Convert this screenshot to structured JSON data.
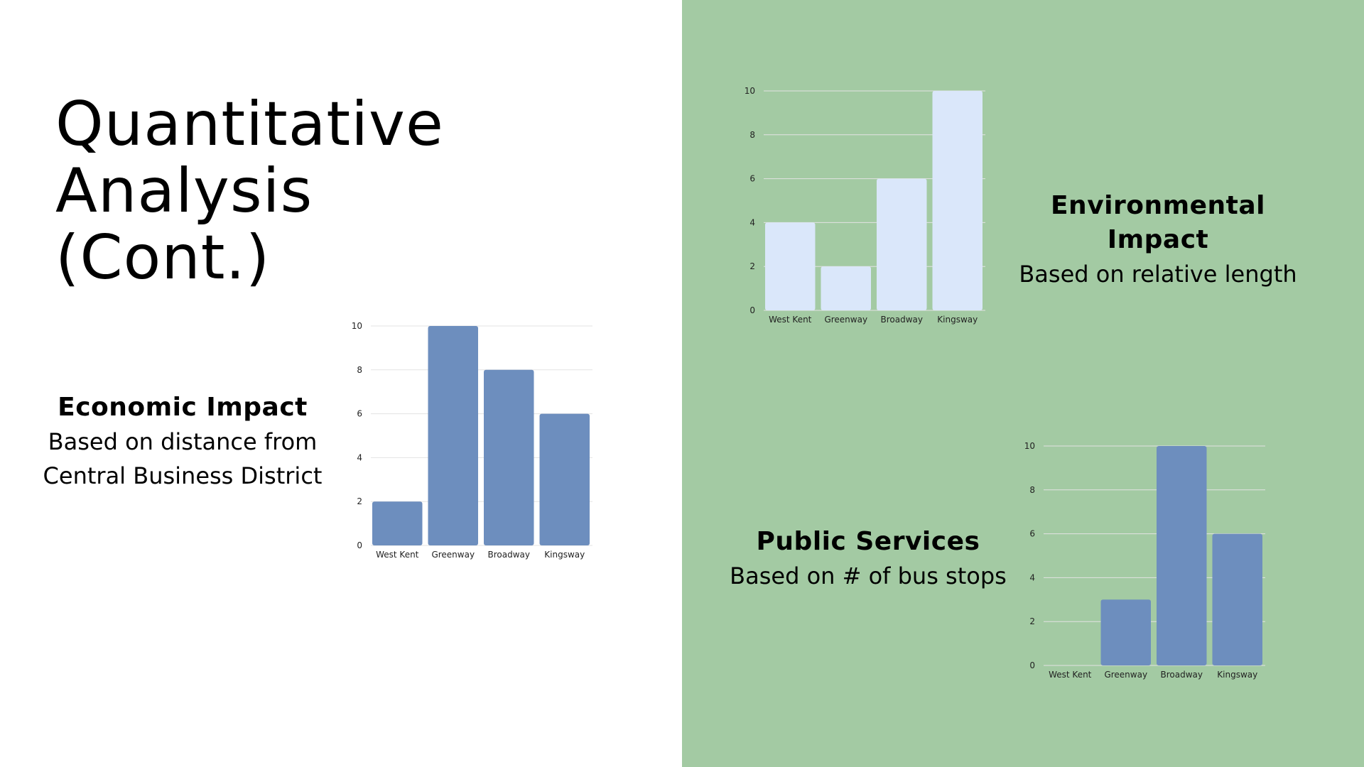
{
  "slide": {
    "title_lines": [
      "Quantitative",
      "Analysis",
      "(Cont.)"
    ],
    "colors": {
      "background": "#ffffff",
      "right_panel": "#a3caa3",
      "bar_blue": "#6d8ebe",
      "bar_light": "#dae7fa",
      "grid": "#e3e3e3"
    }
  },
  "sections": {
    "economic": {
      "heading": "Economic Impact",
      "sub_lines": [
        "Based on distance from",
        "Central Business District"
      ]
    },
    "environmental": {
      "heading": "Environmental Impact",
      "sub_lines": [
        "Based on relative length"
      ]
    },
    "public": {
      "heading": "Public Services",
      "sub_lines": [
        "Based on # of bus stops"
      ]
    }
  },
  "chart_data": [
    {
      "type": "bar",
      "title": "",
      "categories": [
        "West Kent",
        "Greenway",
        "Broadway",
        "Kingsway"
      ],
      "values": [
        2,
        10,
        8,
        6
      ],
      "ylim": [
        0,
        10
      ],
      "yticks": [
        0,
        2,
        4,
        6,
        8,
        10
      ],
      "xlabel": "",
      "ylabel": "",
      "grid": true,
      "bar_color": "#6d8ebe"
    },
    {
      "type": "bar",
      "title": "",
      "categories": [
        "West Kent",
        "Greenway",
        "Broadway",
        "Kingsway"
      ],
      "values": [
        4,
        2,
        6,
        10
      ],
      "ylim": [
        0,
        10
      ],
      "yticks": [
        0,
        2,
        4,
        6,
        8,
        10
      ],
      "xlabel": "",
      "ylabel": "",
      "grid": true,
      "bar_color": "#dae7fa"
    },
    {
      "type": "bar",
      "title": "",
      "categories": [
        "West Kent",
        "Greenway",
        "Broadway",
        "Kingsway"
      ],
      "values": [
        0,
        3,
        10,
        6
      ],
      "ylim": [
        0,
        10
      ],
      "yticks": [
        0,
        2,
        4,
        6,
        8,
        10
      ],
      "xlabel": "",
      "ylabel": "",
      "grid": true,
      "bar_color": "#6d8ebe"
    }
  ]
}
